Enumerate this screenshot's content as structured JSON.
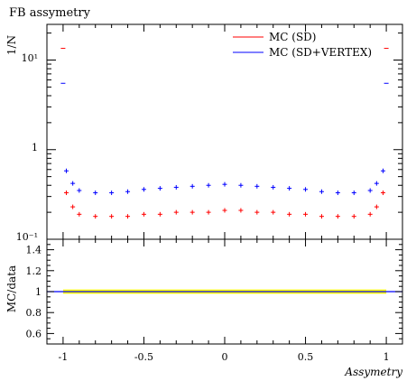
{
  "chart_data": [
    {
      "type": "scatter",
      "title": "FB assymetry",
      "ylabel": "1/N",
      "yscale": "log",
      "ylim": [
        0.1,
        25
      ],
      "xlim": [
        -1.1,
        1.1
      ],
      "ytick_labels": [
        "10⁻¹",
        "1",
        "10¹"
      ],
      "legend": {
        "placement": "top-right"
      },
      "series": [
        {
          "name": "MC (SD)",
          "color": "#ff0000",
          "x": [
            -1.0,
            -0.98,
            -0.94,
            -0.9,
            -0.8,
            -0.7,
            -0.6,
            -0.5,
            -0.4,
            -0.3,
            -0.2,
            -0.1,
            0.0,
            0.1,
            0.2,
            0.3,
            0.4,
            0.5,
            0.6,
            0.7,
            0.8,
            0.9,
            0.94,
            0.98,
            1.0
          ],
          "y": [
            13.5,
            0.33,
            0.23,
            0.19,
            0.18,
            0.18,
            0.18,
            0.19,
            0.19,
            0.2,
            0.2,
            0.2,
            0.21,
            0.21,
            0.2,
            0.2,
            0.19,
            0.19,
            0.18,
            0.18,
            0.18,
            0.19,
            0.23,
            0.33,
            13.5
          ]
        },
        {
          "name": "MC (SD+VERTEX)",
          "color": "#0000ff",
          "x": [
            -1.0,
            -0.98,
            -0.94,
            -0.9,
            -0.8,
            -0.7,
            -0.6,
            -0.5,
            -0.4,
            -0.3,
            -0.2,
            -0.1,
            0.0,
            0.1,
            0.2,
            0.3,
            0.4,
            0.5,
            0.6,
            0.7,
            0.8,
            0.9,
            0.94,
            0.98,
            1.0
          ],
          "y": [
            5.5,
            0.58,
            0.42,
            0.35,
            0.33,
            0.33,
            0.34,
            0.36,
            0.37,
            0.38,
            0.39,
            0.4,
            0.41,
            0.4,
            0.39,
            0.38,
            0.37,
            0.36,
            0.34,
            0.33,
            0.33,
            0.35,
            0.42,
            0.58,
            5.5
          ]
        }
      ]
    },
    {
      "type": "line",
      "ylabel": "MC/data",
      "xlabel": "Assymetry",
      "xlim": [
        -1.1,
        1.1
      ],
      "ylim": [
        0.5,
        1.5
      ],
      "xticks": [
        -1,
        -0.5,
        0,
        0.5,
        1
      ],
      "xtick_labels": [
        "-1",
        "-0.5",
        "0",
        "0.5",
        "1"
      ],
      "yticks": [
        0.6,
        0.8,
        1,
        1.2,
        1.4
      ],
      "ytick_labels": [
        "0.6",
        "0.8",
        "1",
        "1.2",
        "1.4"
      ],
      "reference_line": 1,
      "band": {
        "color": "#ffff00",
        "x_range": [
          -1.0,
          1.0
        ],
        "y_range": [
          0.98,
          1.02
        ]
      }
    }
  ]
}
